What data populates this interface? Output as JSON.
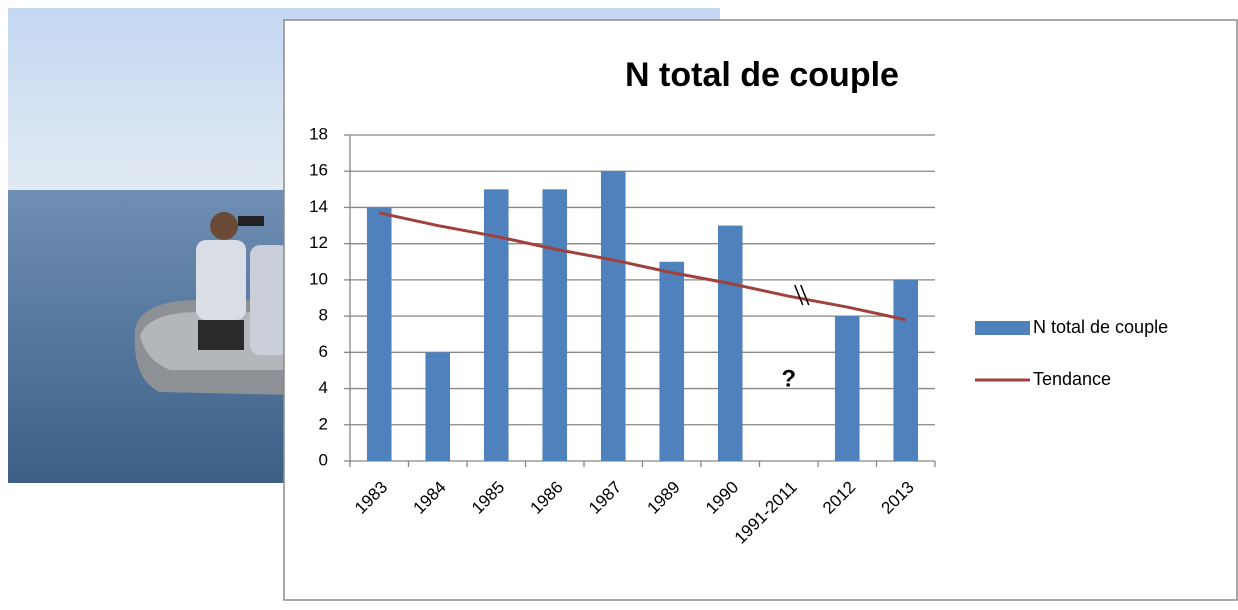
{
  "chart_data": {
    "type": "bar",
    "title": "N total de couple",
    "annotation": "?",
    "categories": [
      "1983",
      "1984",
      "1985",
      "1986",
      "1987",
      "1989",
      "1990",
      "1991-2011",
      "2012",
      "2013"
    ],
    "series": [
      {
        "name": "N total de couple",
        "type": "bar",
        "color": "#4f81bd",
        "values": [
          14,
          6,
          15,
          15,
          16,
          11,
          13,
          null,
          8,
          10
        ]
      },
      {
        "name": "Tendance",
        "type": "line",
        "color": "#a0413c",
        "values": [
          13.7,
          13.0,
          12.4,
          11.7,
          11.1,
          10.4,
          9.8,
          9.1,
          8.5,
          7.8
        ]
      }
    ],
    "ylim": [
      0,
      18
    ],
    "yticks": [
      0,
      2,
      4,
      6,
      8,
      10,
      12,
      14,
      16,
      18
    ],
    "grid": true,
    "legend": "right"
  }
}
